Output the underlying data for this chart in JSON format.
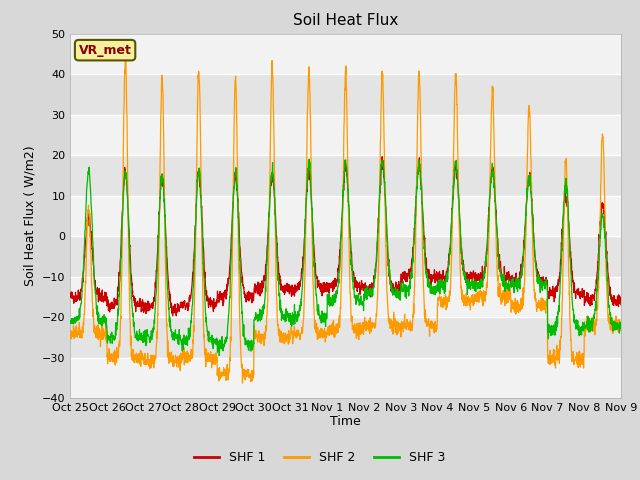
{
  "title": "Soil Heat Flux",
  "xlabel": "Time",
  "ylabel": "Soil Heat Flux ( W/m2)",
  "ylim": [
    -40,
    50
  ],
  "yticks": [
    -40,
    -30,
    -20,
    -10,
    0,
    10,
    20,
    30,
    40,
    50
  ],
  "xtick_labels": [
    "Oct 25",
    "Oct 26",
    "Oct 27",
    "Oct 28",
    "Oct 29",
    "Oct 30",
    "Oct 31",
    "Nov 1",
    "Nov 2",
    "Nov 3",
    "Nov 4",
    "Nov 5",
    "Nov 6",
    "Nov 7",
    "Nov 8",
    "Nov 9"
  ],
  "shf1_color": "#cc0000",
  "shf2_color": "#ff9900",
  "shf3_color": "#00bb00",
  "legend_labels": [
    "SHF 1",
    "SHF 2",
    "SHF 3"
  ],
  "annotation_text": "VR_met",
  "fig_bg_color": "#d8d8d8",
  "plot_bg_light": "#f2f2f2",
  "plot_bg_dark": "#e0e0e0",
  "grid_color": "#ffffff",
  "n_days": 15,
  "points_per_day": 144,
  "band_colors": [
    "#f2f2f2",
    "#e4e4e4"
  ]
}
